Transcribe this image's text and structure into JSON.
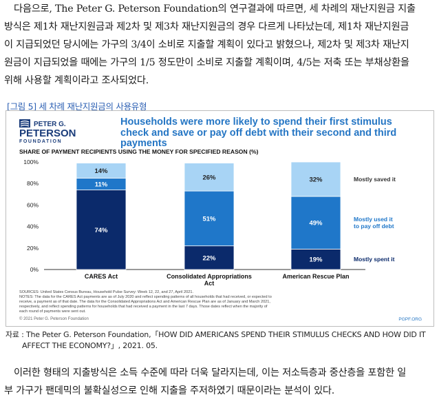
{
  "body": {
    "paragraph1": [
      "다음으로, The Peter G. Peterson Foundation의 연구결과에 따르면, 세 차례의 재난지원금 지출",
      "방식은 제1차 재난지원금과 제2차 및 제3차 재난지원금의 경우 다르게 나타났는데, 제1차 재난지원금",
      "이 지급되었던 당시에는 가구의 3/4이 소비로 지출할 계획이 있다고 밝혔으나, 제2차 및 제3차 재난지",
      "원금이 지급되었을 때에는 가구의 1/5 정도만이 소비로 지출할 계획이며, 4/5는 저축 또는 부채상환을",
      "위해 사용할 계획이라고 조사되었다."
    ],
    "paragraph2": [
      "이러한 형태의 지출방식은 소득 수준에 따라 더욱 달라지는데, 이는 저소득층과 중산층을 포함한 일",
      "부 가구가 팬데믹의 불확실성으로 인해 지출을 주저하였기 때문이라는 분석이 있다."
    ]
  },
  "figure": {
    "caption": "[그림 5] 세 차례 재난지원금의 사용유형",
    "logo": {
      "line1": "PETER G.",
      "line2": "PETERSON",
      "line3": "FOUNDATION",
      "icon": "peterson-flag-logo-icon"
    },
    "footer_left": "© 2021 Peter G. Peterson Foundation",
    "footer_right": "PGPF.ORG",
    "sources_lines": [
      "SOURCES: United States Census Bureau, Household Pulse Survey: Week 12, 22, and 27, April 2021.",
      "NOTES: The data for the CARES Act payments are as of July 2020 and reflect spending patterns of all households that had received, or expected to",
      "receive, a payment as of that date. The data for the Consolidated Appropriations Act and American Rescue Plan are as of January and March 2021,",
      "respectively, and reflect spending patterns for households that had received a payment in the last 7 days. Those dates reflect when the majority of",
      "each round of payments were sent out."
    ]
  },
  "chart_data": {
    "type": "bar",
    "stacked": true,
    "title": "Households were more likely to spend their first stimulus check and save or pay off debt with their second and third payments",
    "title_lines": [
      "Households were more likely to spend their first stimulus",
      "check and save or pay off debt with their second and third",
      "payments"
    ],
    "subtitle": "SHARE OF PAYMENT RECIPIENTS USING THE MONEY FOR SPECIFIED REASON (%)",
    "categories": [
      "CARES Act",
      "Consolidated Appropriations Act",
      "American Rescue Plan"
    ],
    "category_lines": [
      [
        "CARES Act"
      ],
      [
        "Consolidated Appropriations",
        "Act"
      ],
      [
        "American Rescue Plan"
      ]
    ],
    "series": [
      {
        "name": "Mostly spent it",
        "values": [
          74,
          22,
          19
        ],
        "color": "#0b2a6b",
        "label_color": "#0b2a6b"
      },
      {
        "name": "Mostly used it to pay off debt",
        "legend_lines": [
          "Mostly used it",
          "to pay off debt"
        ],
        "values": [
          11,
          51,
          49
        ],
        "color": "#1f77c9",
        "label_color": "#1f77c9"
      },
      {
        "name": "Mostly saved it",
        "values": [
          14,
          26,
          32
        ],
        "color": "#a8d4f5",
        "label_color": "#333333"
      }
    ],
    "ylim": [
      0,
      100
    ],
    "yticks": [
      "0%",
      "20%",
      "40%",
      "60%",
      "80%",
      "100%"
    ],
    "grid": false,
    "legend_placement": "right"
  },
  "source_note": [
    "자료 : The Peter G. Peterson Foundation,「HOW DID AMERICANS SPEND THEIR STIMULUS CHECKS AND HOW DID IT",
    "AFFECT THE ECONOMY?」, 2021. 05."
  ]
}
